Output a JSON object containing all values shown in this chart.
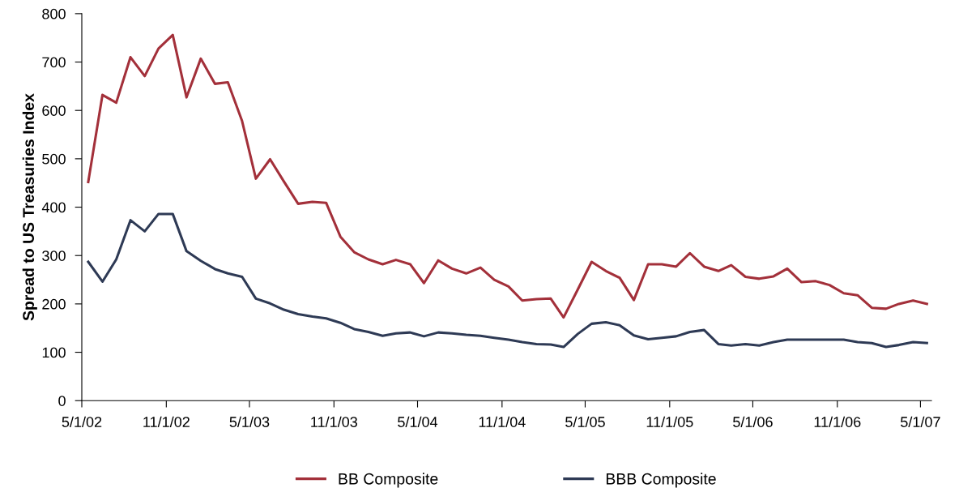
{
  "chart_data": {
    "type": "line",
    "ylabel": "Spread to US Treasuries Index",
    "x": [
      "2002-05-15",
      "2002-06-15",
      "2002-07-15",
      "2002-08-15",
      "2002-09-15",
      "2002-10-15",
      "2002-11-15",
      "2002-12-15",
      "2003-01-15",
      "2003-02-15",
      "2003-03-15",
      "2003-04-15",
      "2003-05-15",
      "2003-06-15",
      "2003-07-15",
      "2003-08-15",
      "2003-09-15",
      "2003-10-15",
      "2003-11-15",
      "2003-12-15",
      "2004-01-15",
      "2004-02-15",
      "2004-03-15",
      "2004-04-15",
      "2004-05-15",
      "2004-06-15",
      "2004-07-15",
      "2004-08-15",
      "2004-09-15",
      "2004-10-15",
      "2004-11-15",
      "2004-12-15",
      "2005-01-15",
      "2005-02-15",
      "2005-03-15",
      "2005-04-15",
      "2005-05-15",
      "2005-06-15",
      "2005-07-15",
      "2005-08-15",
      "2005-09-15",
      "2005-10-15",
      "2005-11-15",
      "2005-12-15",
      "2006-01-15",
      "2006-02-15",
      "2006-03-15",
      "2006-04-15",
      "2006-05-15",
      "2006-06-15",
      "2006-07-15",
      "2006-08-15",
      "2006-09-15",
      "2006-10-15",
      "2006-11-15",
      "2006-12-15",
      "2007-01-15",
      "2007-02-15",
      "2007-03-15",
      "2007-04-15",
      "2007-05-15"
    ],
    "series": [
      {
        "name": "BB Composite",
        "color": "#a3303a",
        "values": [
          452,
          632,
          616,
          710,
          671,
          728,
          756,
          627,
          707,
          655,
          658,
          578,
          459,
          499,
          453,
          407,
          411,
          409,
          339,
          307,
          292,
          282,
          291,
          282,
          243,
          290,
          273,
          263,
          275,
          250,
          236,
          207,
          210,
          211,
          172,
          230,
          287,
          268,
          254,
          208,
          282,
          282,
          277,
          305,
          277,
          268,
          280,
          256,
          252,
          257,
          273,
          245,
          247,
          239,
          222,
          218,
          192,
          190,
          200,
          207,
          200
        ]
      },
      {
        "name": "BBB Composite",
        "color": "#2e3a55",
        "values": [
          287,
          246,
          292,
          373,
          350,
          386,
          386,
          309,
          289,
          272,
          263,
          256,
          211,
          201,
          188,
          179,
          174,
          170,
          161,
          148,
          142,
          134,
          139,
          141,
          133,
          141,
          139,
          136,
          134,
          130,
          126,
          121,
          117,
          116,
          111,
          138,
          159,
          162,
          156,
          135,
          127,
          130,
          133,
          142,
          146,
          117,
          114,
          117,
          114,
          121,
          126,
          126,
          126,
          126,
          126,
          121,
          119,
          111,
          115,
          121,
          119
        ]
      }
    ],
    "xlim": [
      "2002-05-01",
      "2007-05-25"
    ],
    "xticks": [
      {
        "value": "2002-05-01",
        "label": "5/1/02"
      },
      {
        "value": "2002-11-01",
        "label": "11/1/02"
      },
      {
        "value": "2003-05-01",
        "label": "5/1/03"
      },
      {
        "value": "2003-11-01",
        "label": "11/1/03"
      },
      {
        "value": "2004-05-01",
        "label": "5/1/04"
      },
      {
        "value": "2004-11-01",
        "label": "11/1/04"
      },
      {
        "value": "2005-05-01",
        "label": "5/1/05"
      },
      {
        "value": "2005-11-01",
        "label": "11/1/05"
      },
      {
        "value": "2006-05-01",
        "label": "5/1/06"
      },
      {
        "value": "2006-11-01",
        "label": "11/1/06"
      },
      {
        "value": "2007-05-01",
        "label": "5/1/07"
      }
    ],
    "ylim": [
      0,
      800
    ],
    "yticks": [
      0,
      100,
      200,
      300,
      400,
      500,
      600,
      700,
      800
    ],
    "grid": false,
    "legend": "bottom",
    "marker": "none",
    "line_style": "solid"
  }
}
